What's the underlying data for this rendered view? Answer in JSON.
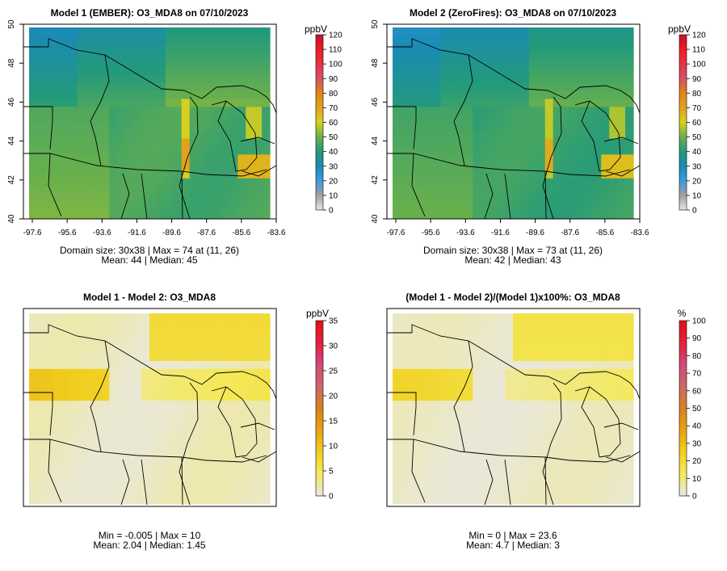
{
  "chart_data": [
    {
      "type": "heatmap",
      "title": "Model 1 (EMBER): O3_MDA8 on 07/10/2023",
      "unit": "ppbV",
      "colorbar_ticks": [
        0,
        10,
        20,
        30,
        40,
        50,
        60,
        70,
        80,
        90,
        100,
        110,
        120
      ],
      "colorbar_range": [
        0,
        120
      ],
      "x_ticks": [
        "-97.6",
        "-95.6",
        "-93.6",
        "-91.6",
        "-89.6",
        "-87.6",
        "-85.6",
        "-83.6"
      ],
      "y_ticks": [
        "40",
        "42",
        "44",
        "46",
        "48",
        "50"
      ],
      "stats_line1": "Domain size: 30x38 | Max = 74 at (11, 26)",
      "stats_line2": "Mean: 44 |  Median: 45",
      "domain_size": "30x38",
      "max": 74,
      "max_cell": [
        11,
        26
      ],
      "mean": 44,
      "median": 45
    },
    {
      "type": "heatmap",
      "title": "Model 2 (ZeroFires): O3_MDA8 on 07/10/2023",
      "unit": "ppbV",
      "colorbar_ticks": [
        0,
        10,
        20,
        30,
        40,
        50,
        60,
        70,
        80,
        90,
        100,
        110,
        120
      ],
      "colorbar_range": [
        0,
        120
      ],
      "x_ticks": [
        "-97.6",
        "-95.6",
        "-93.6",
        "-91.6",
        "-89.6",
        "-87.6",
        "-85.6",
        "-83.6"
      ],
      "y_ticks": [
        "40",
        "42",
        "44",
        "46",
        "48",
        "50"
      ],
      "stats_line1": "Domain size: 30x38 | Max = 73 at (11, 26)",
      "stats_line2": "Mean: 42 |  Median: 43",
      "domain_size": "30x38",
      "max": 73,
      "max_cell": [
        11,
        26
      ],
      "mean": 42,
      "median": 43
    },
    {
      "type": "heatmap",
      "title": "Model 1 - Model 2: O3_MDA8",
      "unit": "ppbV",
      "colorbar_ticks": [
        0,
        5,
        10,
        15,
        20,
        25,
        30,
        35
      ],
      "colorbar_range": [
        0,
        35
      ],
      "stats_line1": "Min = -0.005 | Max = 10",
      "stats_line2": "Mean: 2.04 |  Median: 1.45",
      "min": -0.005,
      "max": 10,
      "mean": 2.04,
      "median": 1.45
    },
    {
      "type": "heatmap",
      "title": "(Model 1 - Model 2)/(Model 1)x100%: O3_MDA8",
      "unit": "%",
      "colorbar_ticks": [
        0,
        10,
        20,
        30,
        40,
        50,
        60,
        70,
        80,
        90,
        100
      ],
      "colorbar_range": [
        0,
        100
      ],
      "stats_line1": "Min = 0 | Max = 23.6",
      "stats_line2": "Mean: 4.7 |  Median: 3",
      "min": 0,
      "max": 23.6,
      "mean": 4.7,
      "median": 3
    }
  ],
  "colors": {
    "conc_scale": [
      "#e6e6e6",
      "#a0a0a0",
      "#3d9be0",
      "#1a8bb5",
      "#239a7a",
      "#6ab04c",
      "#d8d020",
      "#e2a21a",
      "#df8618",
      "#d7506a",
      "#e63346",
      "#f01b22",
      "#c8102e"
    ],
    "diff_scale": [
      "#e8e8e8",
      "#f4e95a",
      "#f0cf1e",
      "#e7a214",
      "#d9821c",
      "#c96a6a",
      "#d4487a",
      "#e3203a",
      "#e60f18"
    ]
  }
}
